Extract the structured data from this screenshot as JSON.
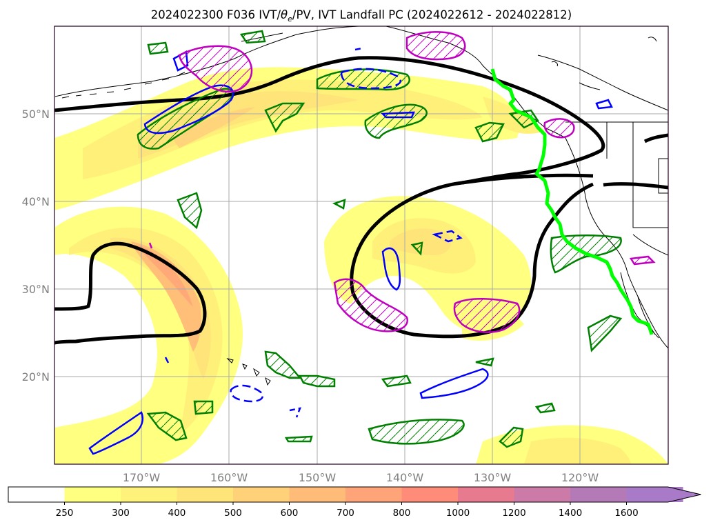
{
  "figure": {
    "title": "2024022300 F036 IVT/",
    "title_theta": "θ",
    "title_sub": "e",
    "title_rest": "/PV, IVT Landfall PC (2024022612 - 2024022812)"
  },
  "map": {
    "type": "map",
    "lat_labels": [
      "50°N",
      "40°N",
      "30°N",
      "20°N"
    ],
    "lon_labels": [
      "170°W",
      "160°W",
      "150°W",
      "140°W",
      "130°W",
      "120°W"
    ],
    "grid": true,
    "colors": {
      "ivt_shade": [
        "#ffff80",
        "#fff07a",
        "#ffe47a",
        "#ffd47a",
        "#ffbf78",
        "#ffa878",
        "#ff9078"
      ],
      "principal_component_contour": "#000000",
      "theta_e_positive": "#008000",
      "theta_e_negative": "#0000ff",
      "pv": "#c000c0",
      "landfall_line": "#00ff00",
      "coastline": "#000000",
      "gridline": "#aaaaaa"
    }
  },
  "colorbar": {
    "ticks": [
      "250",
      "300",
      "400",
      "500",
      "600",
      "700",
      "800",
      "1000",
      "1200",
      "1400",
      "1600"
    ],
    "colors": [
      "#ffffff",
      "#ffff80",
      "#fff27a",
      "#ffe47a",
      "#ffd27a",
      "#ffbc78",
      "#ffa478",
      "#ff8c78",
      "#e87a90",
      "#cc7aa8",
      "#b47ab8",
      "#a87ac8"
    ],
    "extend": "max"
  }
}
